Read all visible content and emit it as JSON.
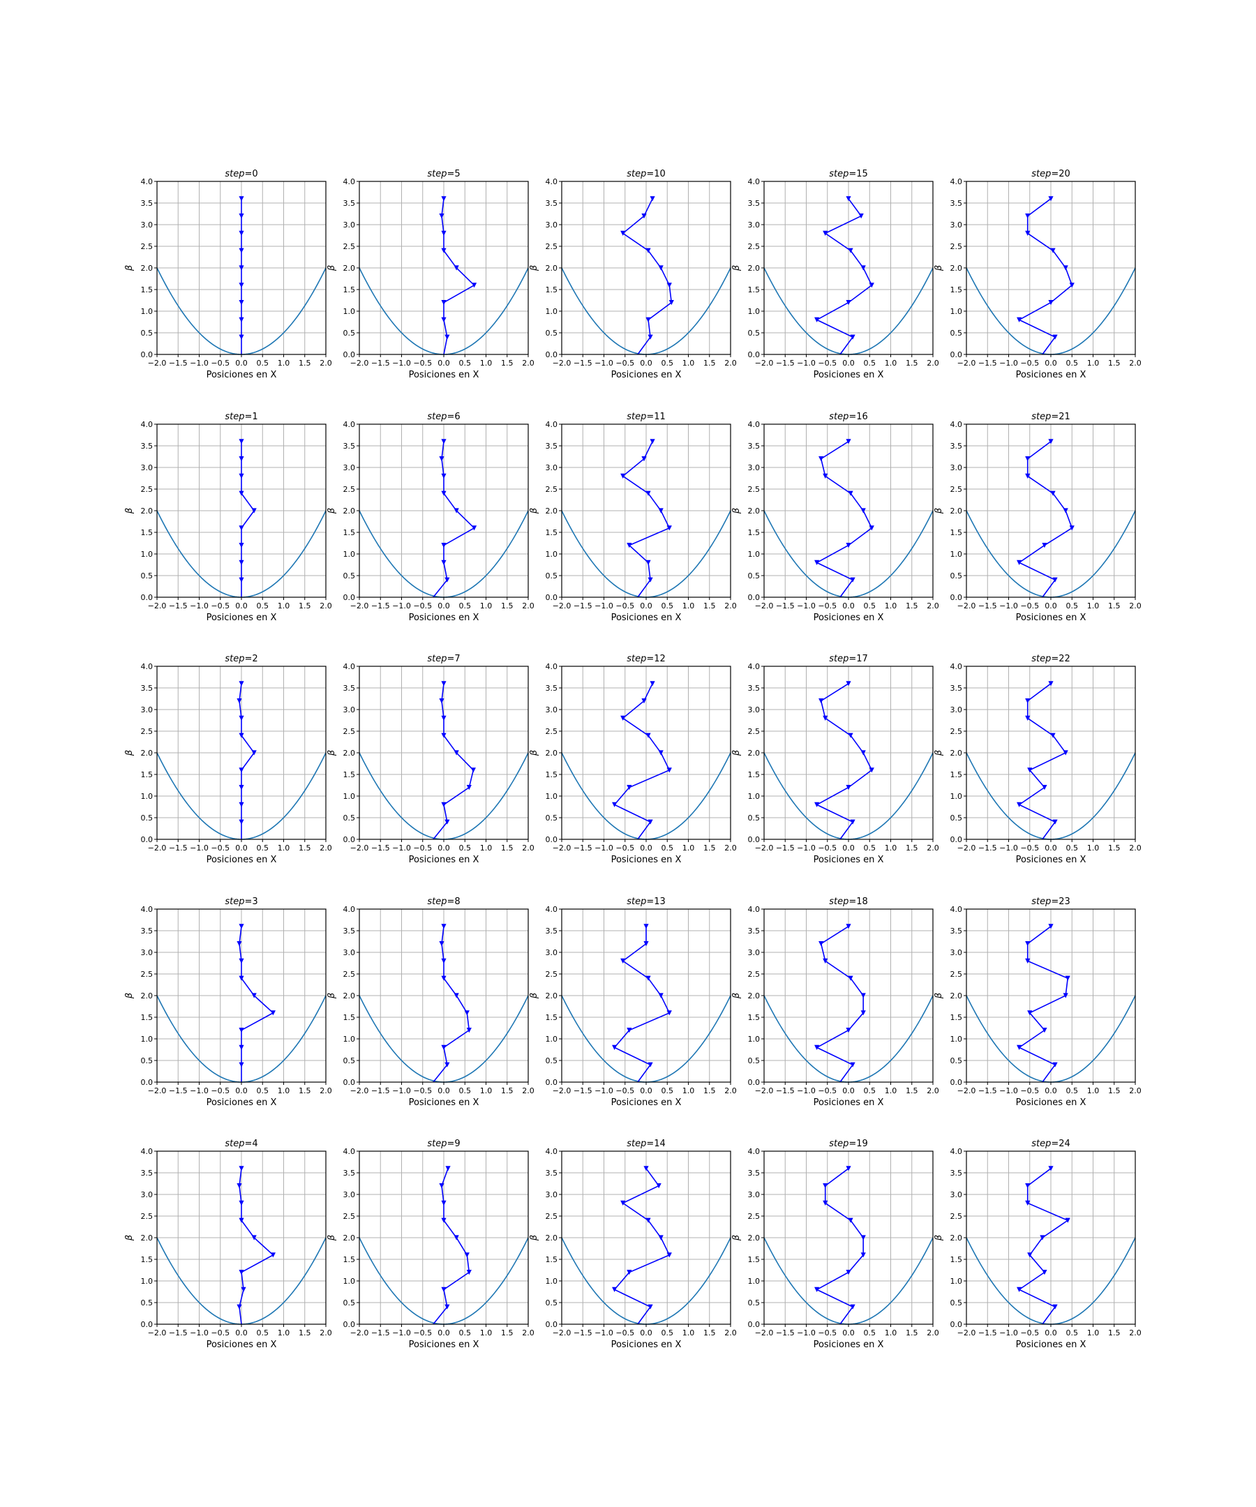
{
  "chart_data": {
    "type": "line",
    "layout": {
      "rows": 5,
      "cols": 5,
      "order": "column-major"
    },
    "xlim": [
      -2.0,
      2.0
    ],
    "ylim": [
      0.0,
      4.0
    ],
    "xticks": [
      -2.0,
      -1.5,
      -1.0,
      -0.5,
      0.0,
      0.5,
      1.0,
      1.5,
      2.0
    ],
    "yticks": [
      0.0,
      0.5,
      1.0,
      1.5,
      2.0,
      2.5,
      3.0,
      3.5,
      4.0
    ],
    "xtick_labels": [
      "−2.0",
      "−1.5",
      "−1.0",
      "−0.5",
      "0.0",
      "0.5",
      "1.0",
      "1.5",
      "2.0"
    ],
    "ytick_labels": [
      "0.0",
      "0.5",
      "1.0",
      "1.5",
      "2.0",
      "2.5",
      "3.0",
      "3.5",
      "4.0"
    ],
    "xlabel": "Posiciones en X",
    "ylabel": "β",
    "title_prefix": "step",
    "grid": true,
    "colors": {
      "curve": "#1f77b4",
      "trajectory": "#0000ff"
    },
    "curve": {
      "equation": "y = x^2 / 2",
      "x_range": [
        -2.0,
        2.0
      ]
    },
    "y_levels": [
      0.0,
      0.4,
      0.8,
      1.2,
      1.6,
      2.0,
      2.4,
      2.8,
      3.2,
      3.6
    ],
    "panels": [
      {
        "title": "step=0",
        "step": 0,
        "x": [
          0.0,
          0.0,
          0.0,
          0.0,
          0.0,
          0.0,
          0.0,
          0.0,
          0.0,
          0.0
        ]
      },
      {
        "title": "step=1",
        "step": 1,
        "x": [
          0.0,
          0.0,
          0.0,
          0.0,
          0.0,
          0.3,
          0.0,
          0.0,
          0.0,
          0.0
        ]
      },
      {
        "title": "step=2",
        "step": 2,
        "x": [
          0.0,
          0.0,
          0.0,
          0.0,
          0.0,
          0.3,
          0.0,
          0.0,
          -0.05,
          0.0
        ]
      },
      {
        "title": "step=3",
        "step": 3,
        "x": [
          0.0,
          0.0,
          0.0,
          0.0,
          0.75,
          0.3,
          0.0,
          0.0,
          -0.05,
          0.0
        ]
      },
      {
        "title": "step=4",
        "step": 4,
        "x": [
          0.0,
          -0.05,
          0.05,
          0.0,
          0.75,
          0.3,
          0.0,
          0.0,
          -0.05,
          0.0
        ]
      },
      {
        "title": "step=5",
        "step": 5,
        "x": [
          0.0,
          0.08,
          0.0,
          0.0,
          0.72,
          0.3,
          0.0,
          0.0,
          -0.05,
          0.0
        ]
      },
      {
        "title": "step=6",
        "step": 6,
        "x": [
          -0.25,
          0.08,
          0.0,
          0.0,
          0.72,
          0.3,
          0.0,
          0.0,
          -0.05,
          0.0
        ]
      },
      {
        "title": "step=7",
        "step": 7,
        "x": [
          -0.25,
          0.08,
          0.0,
          0.6,
          0.7,
          0.3,
          0.0,
          0.0,
          -0.05,
          0.0
        ]
      },
      {
        "title": "step=8",
        "step": 8,
        "x": [
          -0.25,
          0.08,
          0.0,
          0.6,
          0.55,
          0.3,
          0.0,
          0.0,
          -0.05,
          0.0
        ]
      },
      {
        "title": "step=9",
        "step": 9,
        "x": [
          -0.25,
          0.08,
          0.0,
          0.6,
          0.55,
          0.3,
          0.0,
          0.0,
          -0.05,
          0.1
        ]
      },
      {
        "title": "step=10",
        "step": 10,
        "x": [
          -0.2,
          0.1,
          0.05,
          0.6,
          0.55,
          0.35,
          0.05,
          -0.55,
          -0.05,
          0.15
        ]
      },
      {
        "title": "step=11",
        "step": 11,
        "x": [
          -0.2,
          0.1,
          0.05,
          -0.4,
          0.55,
          0.35,
          0.05,
          -0.55,
          -0.05,
          0.15
        ]
      },
      {
        "title": "step=12",
        "step": 12,
        "x": [
          -0.2,
          0.1,
          -0.75,
          -0.4,
          0.55,
          0.35,
          0.05,
          -0.55,
          -0.05,
          0.15
        ]
      },
      {
        "title": "step=13",
        "step": 13,
        "x": [
          -0.2,
          0.1,
          -0.75,
          -0.4,
          0.55,
          0.35,
          0.05,
          -0.55,
          0.0,
          0.0
        ]
      },
      {
        "title": "step=14",
        "step": 14,
        "x": [
          -0.2,
          0.1,
          -0.75,
          -0.4,
          0.55,
          0.35,
          0.05,
          -0.55,
          0.3,
          0.0
        ]
      },
      {
        "title": "step=15",
        "step": 15,
        "x": [
          -0.2,
          0.1,
          -0.75,
          0.0,
          0.55,
          0.35,
          0.05,
          -0.55,
          0.3,
          0.0
        ]
      },
      {
        "title": "step=16",
        "step": 16,
        "x": [
          -0.2,
          0.1,
          -0.75,
          0.0,
          0.55,
          0.35,
          0.05,
          -0.55,
          -0.65,
          0.0
        ]
      },
      {
        "title": "step=17",
        "step": 17,
        "x": [
          -0.2,
          0.1,
          -0.75,
          0.0,
          0.55,
          0.35,
          0.05,
          -0.55,
          -0.65,
          0.0
        ]
      },
      {
        "title": "step=18",
        "step": 18,
        "x": [
          -0.2,
          0.1,
          -0.75,
          0.0,
          0.35,
          0.35,
          0.05,
          -0.55,
          -0.65,
          0.0
        ]
      },
      {
        "title": "step=19",
        "step": 19,
        "x": [
          -0.2,
          0.1,
          -0.75,
          0.0,
          0.35,
          0.35,
          0.05,
          -0.55,
          -0.55,
          0.0
        ]
      },
      {
        "title": "step=20",
        "step": 20,
        "x": [
          -0.2,
          0.1,
          -0.75,
          0.0,
          0.5,
          0.35,
          0.05,
          -0.55,
          -0.55,
          0.0
        ]
      },
      {
        "title": "step=21",
        "step": 21,
        "x": [
          -0.2,
          0.1,
          -0.75,
          -0.15,
          0.5,
          0.35,
          0.05,
          -0.55,
          -0.55,
          0.0
        ]
      },
      {
        "title": "step=22",
        "step": 22,
        "x": [
          -0.2,
          0.1,
          -0.75,
          -0.15,
          -0.5,
          0.35,
          0.05,
          -0.55,
          -0.55,
          0.0
        ]
      },
      {
        "title": "step=23",
        "step": 23,
        "x": [
          -0.2,
          0.1,
          -0.75,
          -0.15,
          -0.5,
          0.35,
          0.4,
          -0.55,
          -0.55,
          0.0
        ]
      },
      {
        "title": "step=24",
        "step": 24,
        "x": [
          -0.2,
          0.1,
          -0.75,
          -0.15,
          -0.5,
          -0.2,
          0.4,
          -0.55,
          -0.55,
          0.0
        ]
      }
    ]
  }
}
